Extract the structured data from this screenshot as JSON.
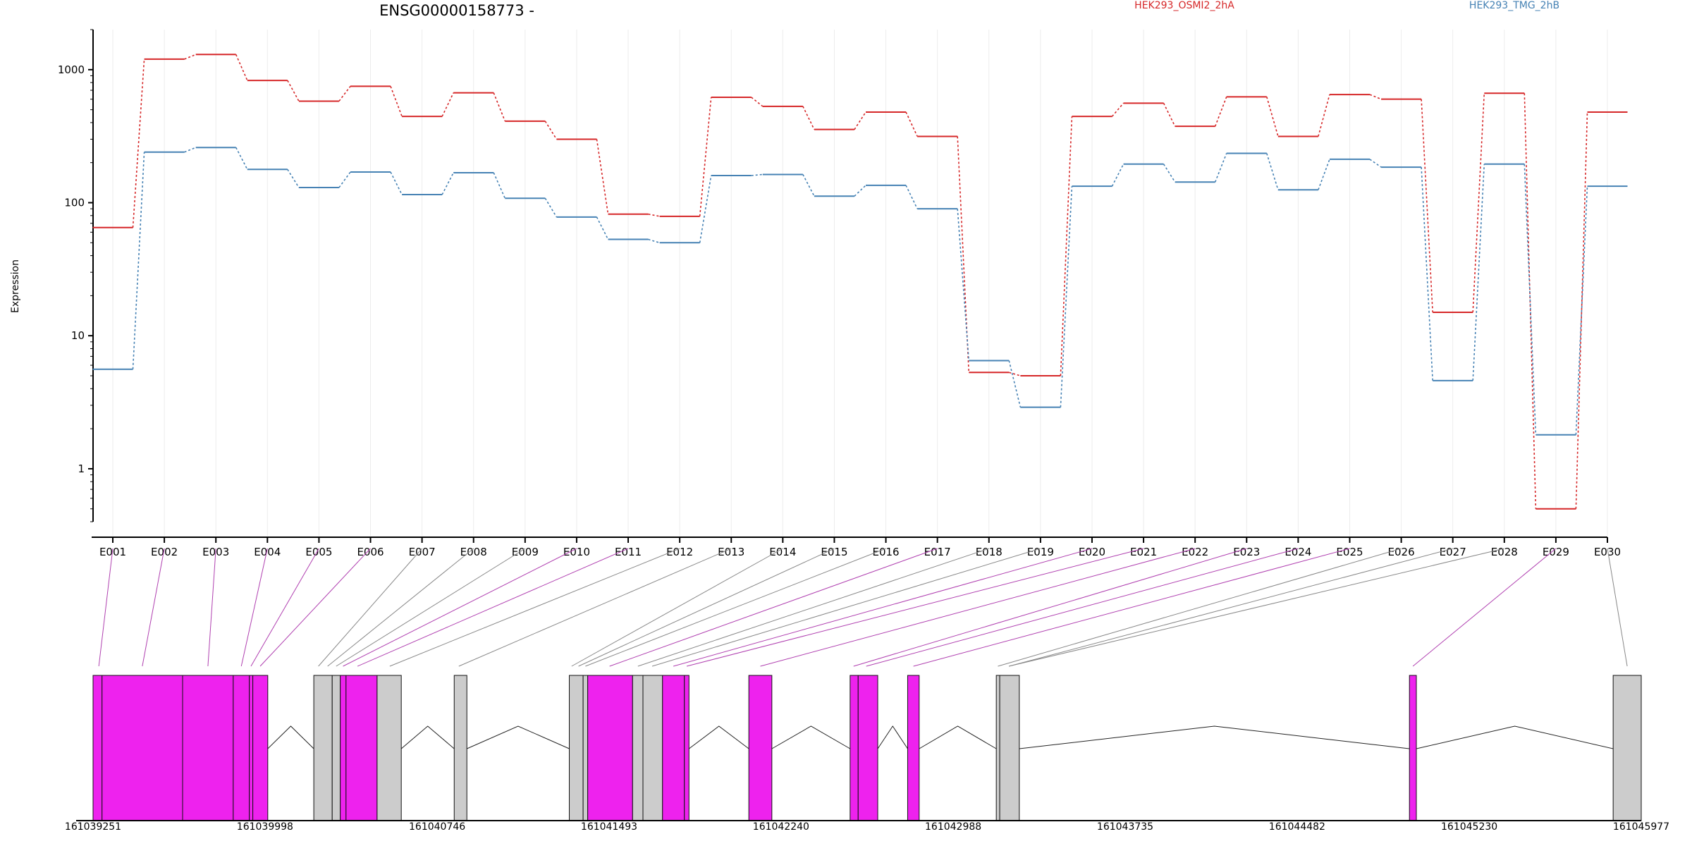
{
  "chart_data": {
    "type": "line",
    "title": "ENSG00000158773 -",
    "ylabel": "Expression",
    "yscale": "log",
    "ylim": [
      0.4,
      2000
    ],
    "yticks": [
      "1",
      "10",
      "100",
      "1000"
    ],
    "categories": [
      "E001",
      "E002",
      "E003",
      "E004",
      "E005",
      "E006",
      "E007",
      "E008",
      "E009",
      "E010",
      "E011",
      "E012",
      "E013",
      "E014",
      "E015",
      "E016",
      "E017",
      "E018",
      "E019",
      "E020",
      "E021",
      "E022",
      "E023",
      "E024",
      "E025",
      "E026",
      "E027",
      "E028",
      "E029",
      "E030"
    ],
    "series": [
      {
        "name": "HEK293_OSMI2_2hA",
        "color": "#d62728",
        "values": [
          65,
          1200,
          1300,
          830,
          580,
          750,
          445,
          670,
          410,
          300,
          82,
          79,
          620,
          530,
          355,
          480,
          315,
          5.3,
          5.0,
          445,
          560,
          375,
          625,
          315,
          650,
          600,
          15,
          665,
          0.5,
          480
        ]
      },
      {
        "name": "HEK293_TMG_2hB",
        "color": "#4682b4",
        "values": [
          5.6,
          240,
          260,
          178,
          130,
          170,
          115,
          168,
          108,
          78,
          53,
          50,
          160,
          163,
          112,
          135,
          90,
          6.5,
          2.9,
          133,
          195,
          143,
          235,
          125,
          212,
          185,
          4.6,
          195,
          1.8,
          133
        ]
      }
    ],
    "gene_model": {
      "coordinate_labels": [
        "161039251",
        "161039998",
        "161040746",
        "161041493",
        "161042240",
        "161042988",
        "161043735",
        "161044482",
        "161045230",
        "161045977"
      ],
      "range": [
        161039251,
        161045977
      ],
      "exons": [
        {
          "id": "E001",
          "start": 161039251,
          "end": 161039290,
          "highlight": true
        },
        {
          "id": "E002",
          "start": 161039290,
          "end": 161039640,
          "highlight": true
        },
        {
          "id": "E003",
          "start": 161039640,
          "end": 161039860,
          "highlight": true
        },
        {
          "id": "E004",
          "start": 161039860,
          "end": 161039930,
          "highlight": true
        },
        {
          "id": "E005",
          "start": 161039930,
          "end": 161039945,
          "highlight": true
        },
        {
          "id": "E006",
          "start": 161039945,
          "end": 161040010,
          "highlight": true
        },
        {
          "id": "E007",
          "start": 161040210,
          "end": 161040290,
          "highlight": false
        },
        {
          "id": "E008",
          "start": 161040290,
          "end": 161040325,
          "highlight": false
        },
        {
          "id": "E009",
          "start": 161040325,
          "end": 161040350,
          "highlight": true
        },
        {
          "id": "E010",
          "start": 161040350,
          "end": 161040485,
          "highlight": true
        },
        {
          "id": "E011",
          "start": 161040485,
          "end": 161040590,
          "highlight": false
        },
        {
          "id": "E012",
          "start": 161040820,
          "end": 161040875,
          "highlight": false
        },
        {
          "id": "E013",
          "start": 161041320,
          "end": 161041380,
          "highlight": false
        },
        {
          "id": "E014",
          "start": 161041380,
          "end": 161041400,
          "highlight": false
        },
        {
          "id": "E015",
          "start": 161041400,
          "end": 161041595,
          "highlight": true
        },
        {
          "id": "E016",
          "start": 161041595,
          "end": 161041640,
          "highlight": false
        },
        {
          "id": "E017",
          "start": 161041640,
          "end": 161041725,
          "highlight": false
        },
        {
          "id": "E018",
          "start": 161041725,
          "end": 161041820,
          "highlight": true
        },
        {
          "id": "E019",
          "start": 161041820,
          "end": 161041840,
          "highlight": true
        },
        {
          "id": "E020",
          "start": 161042100,
          "end": 161042200,
          "highlight": true
        },
        {
          "id": "E021",
          "start": 161042540,
          "end": 161042575,
          "highlight": true
        },
        {
          "id": "E022",
          "start": 161042575,
          "end": 161042660,
          "highlight": true
        },
        {
          "id": "E023",
          "start": 161042790,
          "end": 161042840,
          "highlight": true
        },
        {
          "id": "E024",
          "start": 161043175,
          "end": 161043190,
          "highlight": false
        },
        {
          "id": "E025",
          "start": 161043190,
          "end": 161043275,
          "highlight": false
        },
        {
          "id": "E026",
          "start": 161044970,
          "end": 161045000,
          "highlight": true
        },
        {
          "id": "E027",
          "start": 161045855,
          "end": 161045977,
          "highlight": false
        }
      ],
      "introns": [
        [
          161040010,
          161040210
        ],
        [
          161040590,
          161040820
        ],
        [
          161040875,
          161041320
        ],
        [
          161041840,
          161042100
        ],
        [
          161042200,
          161042540
        ],
        [
          161042660,
          161042790
        ],
        [
          161042840,
          161043175
        ],
        [
          161043275,
          161044970
        ],
        [
          161045000,
          161045855
        ]
      ],
      "connectors": [
        {
          "bin": "E001",
          "genomic": 161039276,
          "highlight": true
        },
        {
          "bin": "E002",
          "genomic": 161039465,
          "highlight": true
        },
        {
          "bin": "E003",
          "genomic": 161039750,
          "highlight": true
        },
        {
          "bin": "E004",
          "genomic": 161039895,
          "highlight": true
        },
        {
          "bin": "E005",
          "genomic": 161039937,
          "highlight": true
        },
        {
          "bin": "E006",
          "genomic": 161039977,
          "highlight": true
        },
        {
          "bin": "E007",
          "genomic": 161040230,
          "highlight": false
        },
        {
          "bin": "E008",
          "genomic": 161040270,
          "highlight": false
        },
        {
          "bin": "E009",
          "genomic": 161040307,
          "highlight": false
        },
        {
          "bin": "E010",
          "genomic": 161040337,
          "highlight": true
        },
        {
          "bin": "E011",
          "genomic": 161040400,
          "highlight": true
        },
        {
          "bin": "E012",
          "genomic": 161040540,
          "highlight": false
        },
        {
          "bin": "E013",
          "genomic": 161040840,
          "highlight": false
        },
        {
          "bin": "E014",
          "genomic": 161041330,
          "highlight": false
        },
        {
          "bin": "E015",
          "genomic": 161041360,
          "highlight": false
        },
        {
          "bin": "E016",
          "genomic": 161041390,
          "highlight": false
        },
        {
          "bin": "E017",
          "genomic": 161041495,
          "highlight": true
        },
        {
          "bin": "E018",
          "genomic": 161041618,
          "highlight": false
        },
        {
          "bin": "E019",
          "genomic": 161041680,
          "highlight": false
        },
        {
          "bin": "E020",
          "genomic": 161041772,
          "highlight": true
        },
        {
          "bin": "E021",
          "genomic": 161041830,
          "highlight": true
        },
        {
          "bin": "E022",
          "genomic": 161042150,
          "highlight": true
        },
        {
          "bin": "E023",
          "genomic": 161042555,
          "highlight": true
        },
        {
          "bin": "E024",
          "genomic": 161042610,
          "highlight": true
        },
        {
          "bin": "E025",
          "genomic": 161042815,
          "highlight": true
        },
        {
          "bin": "E026",
          "genomic": 161043182,
          "highlight": false
        },
        {
          "bin": "E027",
          "genomic": 161043230,
          "highlight": false
        },
        {
          "bin": "E028",
          "genomic": 161043230,
          "highlight": false
        },
        {
          "bin": "E029",
          "genomic": 161044985,
          "highlight": true
        },
        {
          "bin": "E030",
          "genomic": 161045916,
          "highlight": false
        }
      ],
      "highlight_color": "#ee22ee",
      "plain_color": "#cccccc"
    }
  }
}
